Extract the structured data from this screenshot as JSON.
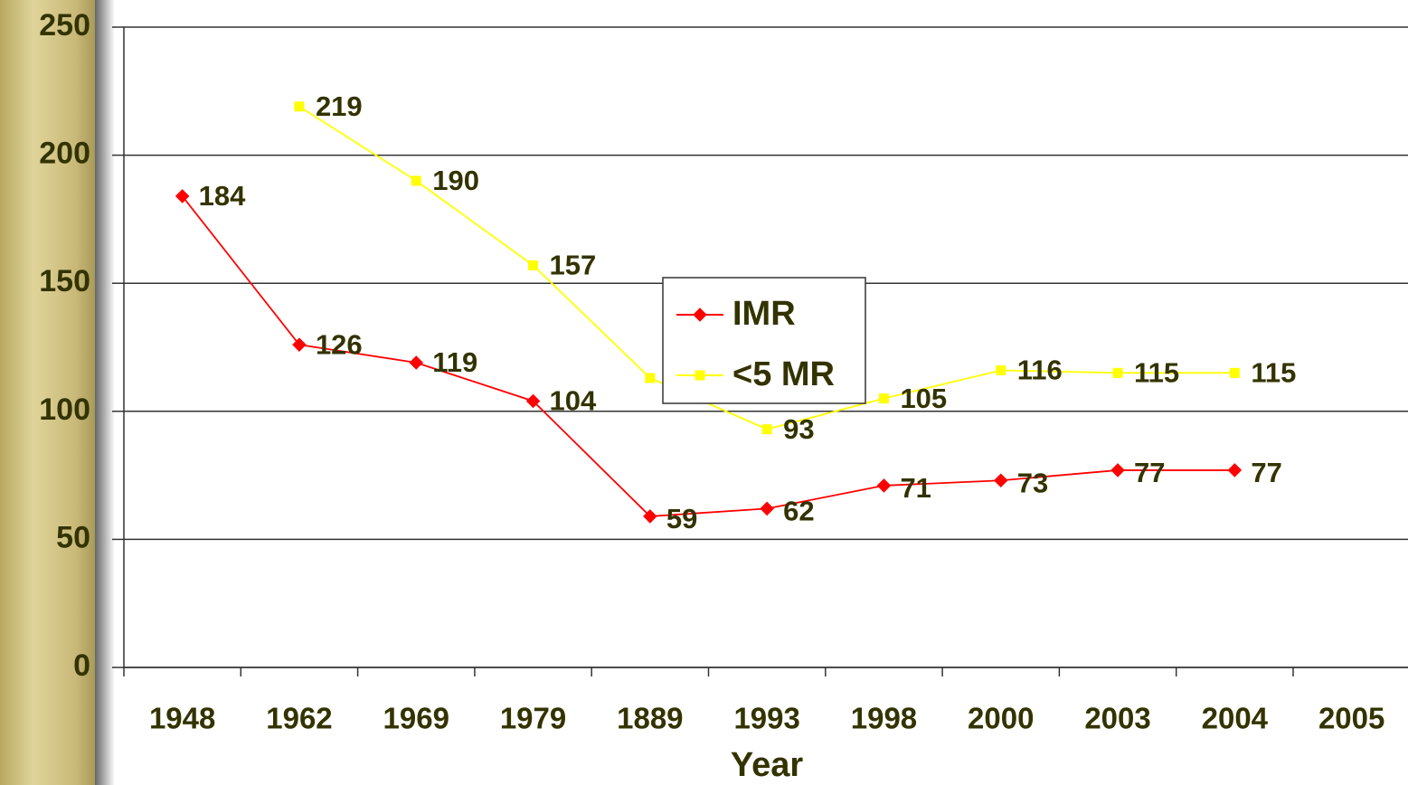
{
  "chart_data": {
    "type": "line",
    "x_label": "Year",
    "categories": [
      "1948",
      "1962",
      "1969",
      "1979",
      "1889",
      "1993",
      "1998",
      "2000",
      "2003",
      "2004",
      "2005"
    ],
    "series": [
      {
        "name": "IMR",
        "color": "#ff0000",
        "values": [
          184,
          126,
          119,
          104,
          59,
          62,
          71,
          73,
          77,
          77,
          null
        ]
      },
      {
        "name": "<5 MR",
        "color": "#ffff00",
        "values": [
          null,
          219,
          190,
          157,
          113,
          93,
          105,
          116,
          115,
          115,
          null
        ]
      }
    ],
    "ylim": [
      0,
      250
    ],
    "yticks": [
      0,
      50,
      100,
      150,
      200,
      250
    ],
    "grid": true
  }
}
